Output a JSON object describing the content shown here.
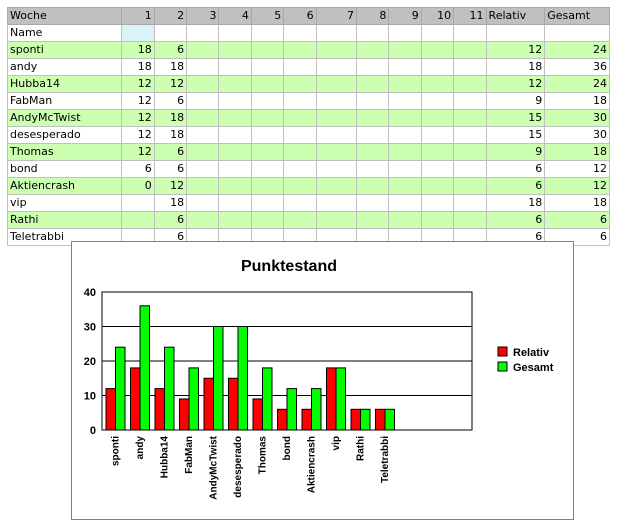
{
  "table": {
    "header": [
      "Woche",
      "1",
      "2",
      "3",
      "4",
      "5",
      "6",
      "7",
      "8",
      "9",
      "10",
      "11",
      "Relativ",
      "Gesamt"
    ],
    "name_label": "Name",
    "rows": [
      {
        "name": "sponti",
        "w1": "18",
        "w2": "6",
        "relativ": "12",
        "gesamt": "24"
      },
      {
        "name": "andy",
        "w1": "18",
        "w2": "18",
        "relativ": "18",
        "gesamt": "36"
      },
      {
        "name": "Hubba14",
        "w1": "12",
        "w2": "12",
        "relativ": "12",
        "gesamt": "24"
      },
      {
        "name": "FabMan",
        "w1": "12",
        "w2": "6",
        "relativ": "9",
        "gesamt": "18"
      },
      {
        "name": "AndyMcTwist",
        "w1": "12",
        "w2": "18",
        "relativ": "15",
        "gesamt": "30"
      },
      {
        "name": "desesperado",
        "w1": "12",
        "w2": "18",
        "relativ": "15",
        "gesamt": "30"
      },
      {
        "name": "Thomas",
        "w1": "12",
        "w2": "6",
        "relativ": "9",
        "gesamt": "18"
      },
      {
        "name": "bond",
        "w1": "6",
        "w2": "6",
        "relativ": "6",
        "gesamt": "12"
      },
      {
        "name": "Aktiencrash",
        "w1": "0",
        "w2": "12",
        "relativ": "6",
        "gesamt": "12"
      },
      {
        "name": "vip",
        "w1": "",
        "w2": "18",
        "relativ": "18",
        "gesamt": "18"
      },
      {
        "name": "Rathi",
        "w1": "",
        "w2": "6",
        "relativ": "6",
        "gesamt": "6"
      },
      {
        "name": "Teletrabbi",
        "w1": "",
        "w2": "6",
        "relativ": "6",
        "gesamt": "6"
      }
    ]
  },
  "colors": {
    "row_highlight": "#ccffb0",
    "header_bg": "#c0c0c0",
    "name_cell": "#d8f4f8"
  },
  "chart_data": {
    "type": "bar",
    "title": "Punktestand",
    "categories": [
      "sponti",
      "andy",
      "Hubba14",
      "FabMan",
      "AndyMcTwist",
      "desesperado",
      "Thomas",
      "bond",
      "Aktiencrash",
      "vip",
      "Rathi",
      "Teletrabbi"
    ],
    "series": [
      {
        "name": "Relativ",
        "color": "#ff0000",
        "values": [
          12,
          18,
          12,
          9,
          15,
          15,
          9,
          6,
          6,
          18,
          6,
          6
        ]
      },
      {
        "name": "Gesamt",
        "color": "#00ff00",
        "values": [
          24,
          36,
          24,
          18,
          30,
          30,
          18,
          12,
          12,
          18,
          6,
          6
        ]
      }
    ],
    "ylim": [
      0,
      40
    ],
    "yticks": [
      0,
      10,
      20,
      30,
      40
    ],
    "grid": true,
    "legend": "right"
  }
}
